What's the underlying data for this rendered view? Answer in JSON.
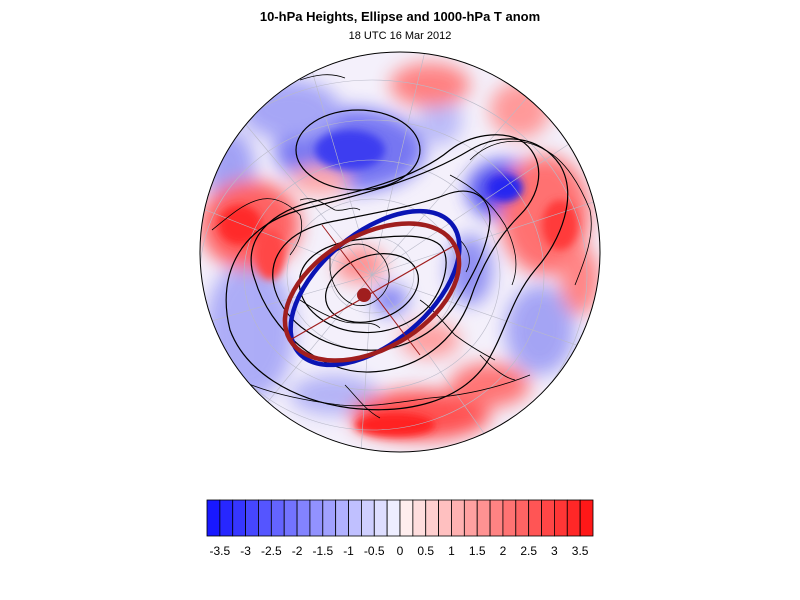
{
  "title": "10-hPa Heights, Ellipse and 1000-hPa T anom",
  "subtitle": "18 UTC 16 Mar 2012",
  "colorbar": {
    "ticks": [
      "-3.5",
      "-3",
      "-2.5",
      "-2",
      "-1.5",
      "-1",
      "-0.5",
      "0",
      "0.5",
      "1",
      "1.5",
      "2",
      "2.5",
      "3",
      "3.5"
    ],
    "min": -3.75,
    "max": 3.75,
    "step": 0.25,
    "negative_color": "#1010ff",
    "positive_color": "#ff1010"
  },
  "colors": {
    "ellipse_blue": "#0a14b4",
    "ellipse_red": "#a01e1e",
    "center_marker": "#a01e1e"
  }
}
